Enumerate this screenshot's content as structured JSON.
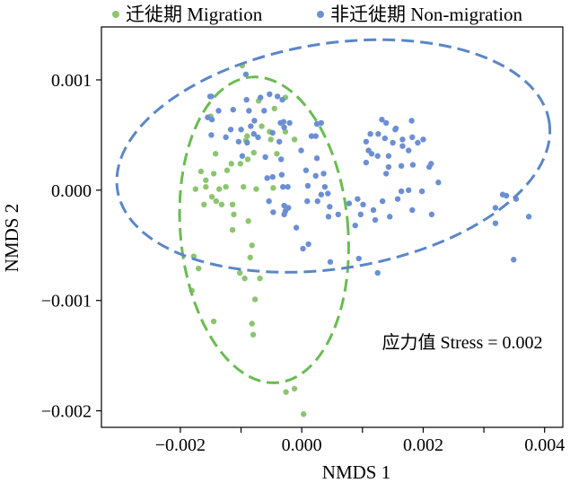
{
  "chart_data": {
    "type": "scatter",
    "xlabel": "NMDS 1",
    "ylabel": "NMDS 2",
    "xlim": [
      -0.0033,
      0.0043
    ],
    "ylim": [
      -0.00215,
      0.00148
    ],
    "xticks": [
      -0.002,
      -0.001,
      0.0,
      0.001,
      0.002,
      0.003,
      0.004
    ],
    "xtick_labels": [
      "−0.002",
      "",
      "0.000",
      "",
      "0.002",
      "",
      "0.004"
    ],
    "yticks": [
      -0.002,
      -0.001,
      0.0,
      0.001
    ],
    "ytick_labels": [
      "−0.002",
      "−0.001",
      "0.000",
      "0.001"
    ],
    "annotation": "应力值 Stress = 0.002",
    "legend_position": "top",
    "series": [
      {
        "name": "迁徙期 Migration",
        "color": "#8cc56f",
        "ellipse": {
          "cx": -0.00062,
          "cy": -0.00036,
          "rx": 0.00138,
          "ry": 0.00139,
          "angle": -5,
          "color": "#6abb53"
        },
        "points": [
          [
            -0.00098,
            0.00113
          ],
          [
            -0.00071,
            0.00081
          ],
          [
            -0.00027,
            0.00084
          ],
          [
            -0.00045,
            0.00074
          ],
          [
            -0.0015,
            0.00067
          ],
          [
            -0.00066,
            0.00058
          ],
          [
            -0.00027,
            0.00053
          ],
          [
            -0.00053,
            0.00053
          ],
          [
            -0.0009,
            0.00049
          ],
          [
            -0.00092,
            0.00045
          ],
          [
            -0.00012,
            0.00046
          ],
          [
            -0.00051,
            0.00046
          ],
          [
            -0.00041,
            0.00033
          ],
          [
            -0.00079,
            0.00034
          ],
          [
            -0.00142,
            0.00033
          ],
          [
            -0.00089,
            0.00028
          ],
          [
            -0.00116,
            0.00024
          ],
          [
            -0.00101,
            0.00024
          ],
          [
            -0.00166,
            0.00017
          ],
          [
            -0.00123,
            0.00018
          ],
          [
            -0.00145,
            0.00015
          ],
          [
            -0.00158,
            9e-05
          ],
          [
            -0.00175,
            1e-05
          ],
          [
            -0.00136,
            1e-05
          ],
          [
            -0.00158,
            3e-05
          ],
          [
            -0.00125,
            3e-05
          ],
          [
            -0.00096,
            3e-05
          ],
          [
            -0.00047,
            2e-05
          ],
          [
            -0.00075,
            1e-05
          ],
          [
            -0.00148,
            -6e-05
          ],
          [
            -0.00141,
            -0.0001
          ],
          [
            -0.00114,
            -0.00013
          ],
          [
            -0.00161,
            -0.00013
          ],
          [
            -0.00132,
            -0.00013
          ],
          [
            -0.00112,
            -0.00022
          ],
          [
            -0.00088,
            -0.00028
          ],
          [
            -0.00114,
            -0.00036
          ],
          [
            -0.00082,
            -0.0005
          ],
          [
            -0.00178,
            -0.0006
          ],
          [
            -0.00085,
            -0.00061
          ],
          [
            -0.0017,
            -0.00071
          ],
          [
            -0.00102,
            -0.00075
          ],
          [
            -0.00094,
            -0.0008
          ],
          [
            -0.00069,
            -0.0008
          ],
          [
            -0.00181,
            -0.00091
          ],
          [
            -0.00077,
            -0.00099
          ],
          [
            -0.00145,
            -0.00119
          ],
          [
            -0.00082,
            -0.00121
          ],
          [
            -0.0008,
            -0.00131
          ],
          [
            -0.00012,
            -0.0018
          ],
          [
            -0.00026,
            -0.00183
          ],
          [
            3e-05,
            -0.00203
          ]
        ]
      },
      {
        "name": "非迁徙期 Non-migration",
        "color": "#6b8fd4",
        "ellipse": {
          "cx": 0.00052,
          "cy": 0.00031,
          "rx": 0.0036,
          "ry": 0.00102,
          "angle": -9,
          "color": "#5b86c7"
        },
        "points": [
          [
            -0.00092,
            0.00105
          ],
          [
            -0.00151,
            0.00085
          ],
          [
            -0.00149,
            0.00085
          ],
          [
            -0.00091,
            0.00082
          ],
          [
            -0.00068,
            0.00084
          ],
          [
            -0.00053,
            0.00087
          ],
          [
            -0.0004,
            0.00085
          ],
          [
            -0.00032,
            0.00082
          ],
          [
            -0.00137,
            0.00072
          ],
          [
            -0.00113,
            0.00073
          ],
          [
            -0.00087,
            0.00072
          ],
          [
            -0.00062,
            0.00072
          ],
          [
            -0.00078,
            0.00063
          ],
          [
            -0.00035,
            0.00061
          ],
          [
            -0.0003,
            0.00062
          ],
          [
            -0.00155,
            0.00066
          ],
          [
            -0.00148,
            0.00064
          ],
          [
            -0.00084,
            0.00058
          ],
          [
            -0.00117,
            0.00055
          ],
          [
            -0.001,
            0.00055
          ],
          [
            -0.00048,
            0.00052
          ],
          [
            -0.00029,
            0.00057
          ],
          [
            -0.0002,
            0.00061
          ],
          [
            0.00025,
            0.0006
          ],
          [
            0.00032,
            0.00061
          ],
          [
            0.00023,
            0.00049
          ],
          [
            0.00016,
            0.00049
          ],
          [
            -0.00037,
            0.00044
          ],
          [
            -0.00072,
            0.00048
          ],
          [
            -0.00149,
            0.0005
          ],
          [
            -0.00125,
            0.00048
          ],
          [
            -0.00104,
            0.00044
          ],
          [
            -0.0009,
            0.00043
          ],
          [
            -0.00079,
            0.00051
          ],
          [
            -0.00098,
            0.00031
          ],
          [
            -0.0006,
            0.0003
          ],
          [
            -0.00034,
            0.00028
          ],
          [
            -1e-05,
            0.00036
          ],
          [
            7e-05,
            0.00018
          ],
          [
            0.0001,
            4e-05
          ],
          [
            -0.00033,
            0.00014
          ],
          [
            -0.00048,
            0.00012
          ],
          [
            -0.00057,
            0.00011
          ],
          [
            0.00025,
            0.00029
          ],
          [
            -0.00031,
            3e-05
          ],
          [
            -0.00023,
            3e-05
          ],
          [
            0.00023,
            0.00013
          ],
          [
            0.00036,
            0.00015
          ],
          [
            0.00038,
            3e-05
          ],
          [
            0.00043,
            -3e-05
          ],
          [
            0.00032,
            -4e-05
          ],
          [
            9e-05,
            -0.0001
          ],
          [
            -0.00054,
            -0.0001
          ],
          [
            -0.00022,
            -0.00016
          ],
          [
            -0.00029,
            -0.00014
          ],
          [
            -0.00047,
            -0.0002
          ],
          [
            -0.00027,
            -0.00019
          ],
          [
            -0.00029,
            -0.00022
          ],
          [
            0.00044,
            -0.00024
          ],
          [
            0.0006,
            -0.00022
          ],
          [
            0.00046,
            -0.00015
          ],
          [
            0.00026,
            -0.0001
          ],
          [
            -9e-05,
            -0.00034
          ],
          [
            0.00011,
            -0.00049
          ],
          [
            2e-05,
            -0.00053
          ],
          [
            0.00047,
            -0.00065
          ],
          [
            0.00094,
            -0.00062
          ],
          [
            0.00125,
            -0.00075
          ],
          [
            0.0011,
            0.00036
          ],
          [
            0.00106,
            0.00044
          ],
          [
            0.00132,
            0.00064
          ],
          [
            0.00139,
            0.00061
          ],
          [
            0.00155,
            0.00056
          ],
          [
            0.00181,
            0.00063
          ],
          [
            0.00154,
            0.00055
          ],
          [
            0.00113,
            0.00051
          ],
          [
            0.00126,
            0.00051
          ],
          [
            0.00137,
            0.00047
          ],
          [
            0.00166,
            0.00046
          ],
          [
            0.00182,
            0.00048
          ],
          [
            0.002,
            0.00046
          ],
          [
            0.00191,
            0.00043
          ],
          [
            0.00176,
            0.00036
          ],
          [
            0.00166,
            0.0004
          ],
          [
            0.0015,
            0.00043
          ],
          [
            0.00143,
            0.00031
          ],
          [
            0.00125,
            0.00031
          ],
          [
            0.00115,
            0.00033
          ],
          [
            0.00213,
            0.00024
          ],
          [
            0.0021,
            0.00021
          ],
          [
            0.00183,
            0.00023
          ],
          [
            0.00164,
            0.00022
          ],
          [
            0.00143,
            0.00021
          ],
          [
            0.00139,
            0.00015
          ],
          [
            0.00106,
            0.00025
          ],
          [
            0.00225,
            7e-05
          ],
          [
            0.00198,
            -1e-05
          ],
          [
            0.00176,
            0.0
          ],
          [
            0.00164,
            -1e-05
          ],
          [
            0.00158,
            -8e-05
          ],
          [
            0.00133,
            -0.0001
          ],
          [
            0.00118,
            -0.00018
          ],
          [
            0.00101,
            -0.00013
          ],
          [
            0.00092,
            -8e-05
          ],
          [
            0.00078,
            -0.00012
          ],
          [
            0.00097,
            -0.00022
          ],
          [
            0.00088,
            -0.00032
          ],
          [
            0.00121,
            -0.00027
          ],
          [
            0.00145,
            -0.00024
          ],
          [
            0.00182,
            -0.00018
          ],
          [
            0.00214,
            -0.00022
          ],
          [
            0.00331,
            -4e-05
          ],
          [
            0.00337,
            -5e-05
          ],
          [
            0.00353,
            -8e-05
          ],
          [
            0.00319,
            -0.00016
          ],
          [
            0.00374,
            -0.00024
          ],
          [
            0.00319,
            -0.0003
          ],
          [
            0.00349,
            -0.00063
          ]
        ]
      }
    ]
  }
}
